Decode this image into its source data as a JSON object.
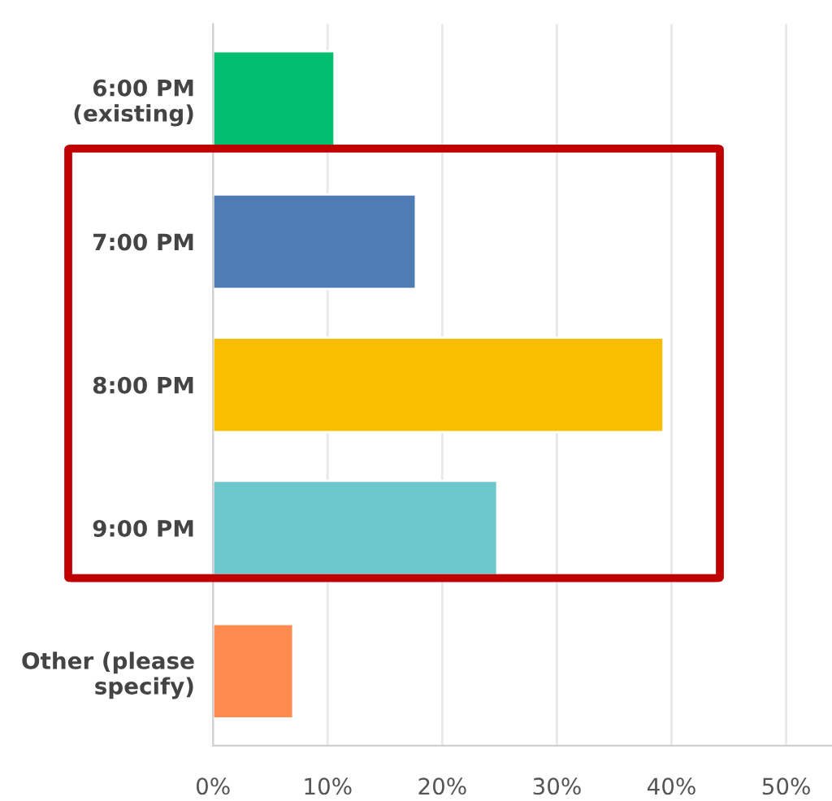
{
  "chart_data": {
    "type": "bar",
    "orientation": "horizontal",
    "categories": [
      "6:00 PM\n(existing)",
      "7:00 PM",
      "8:00 PM",
      "9:00 PM",
      "Other (please\nspecify)"
    ],
    "values": [
      10.6,
      17.7,
      39.3,
      24.8,
      7.0
    ],
    "colors": [
      "#00bf6f",
      "#507cb6",
      "#f9be00",
      "#6bc8cd",
      "#ff8b4f"
    ],
    "xlim": [
      0,
      54
    ],
    "xticks": [
      {
        "value": 0,
        "label": "0%"
      },
      {
        "value": 10,
        "label": "10%"
      },
      {
        "value": 20,
        "label": "20%"
      },
      {
        "value": 30,
        "label": "30%"
      },
      {
        "value": 40,
        "label": "40%"
      },
      {
        "value": 50,
        "label": "50%"
      }
    ],
    "grid": "x"
  }
}
